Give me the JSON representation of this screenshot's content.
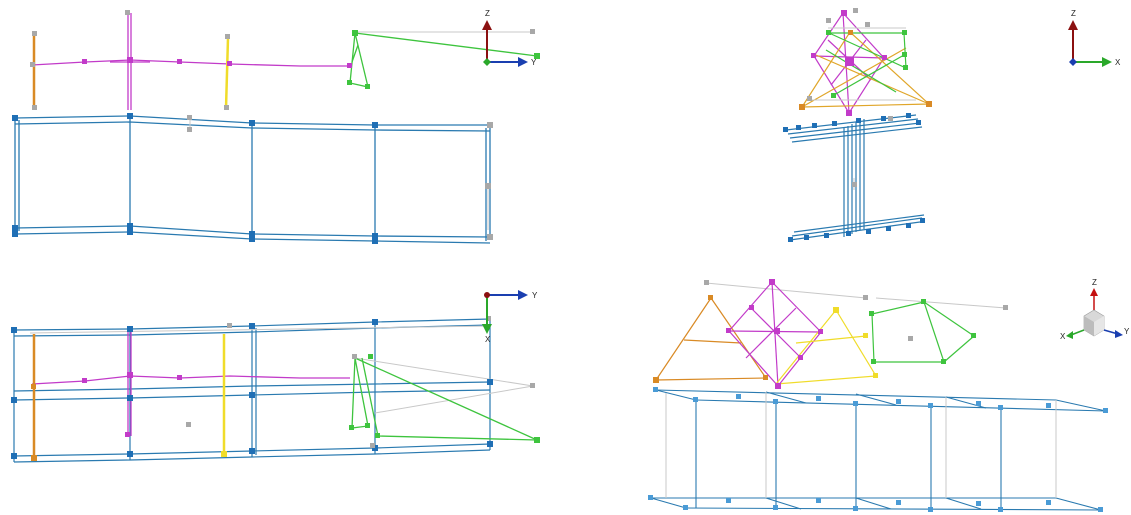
{
  "colors": {
    "beam": "#2a7ab0",
    "beam_light": "#5aa3d0",
    "node_blue": "#1f6fb5",
    "node_grey": "#a8a8a8",
    "link_grey": "#c8c8c8",
    "magenta": "#c23bc9",
    "green": "#3ec43e",
    "yellow": "#f0dc2a",
    "orange": "#d98a25",
    "axis_z": "#8b1010",
    "axis_y": "#1a3fb0",
    "axis_x_green": "#2aa82a"
  },
  "axes": {
    "top_left": {
      "z": "Z",
      "y": "Y"
    },
    "top_right": {
      "z": "Z",
      "x": "X"
    },
    "bottom_left": {
      "y": "Y",
      "x": "X"
    },
    "bottom_right": {
      "z": "Z",
      "x": "X",
      "y": "Y"
    }
  }
}
